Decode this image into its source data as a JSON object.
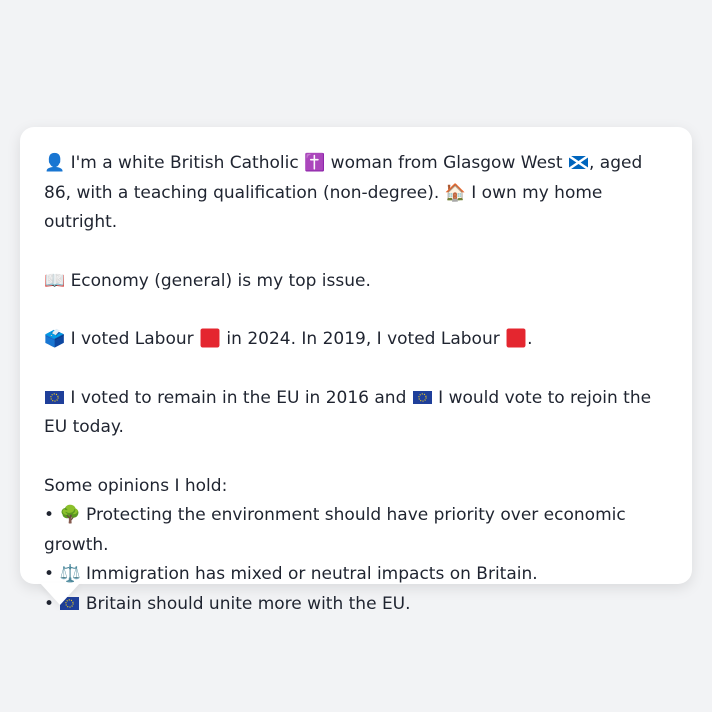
{
  "card": {
    "line1_a": "👤 I'm a white British Catholic ✝️ woman from Glasgow West ",
    "line1_flag": "scotland-flag-icon",
    "line1_b": ", aged 86, with a teaching qualification (non-degree). 🏠 I own my home outright.",
    "issue": "📖 Economy (general) is my top issue.",
    "vote_a": "🗳️ I voted Labour ",
    "vote_b": " in 2024. In 2019, I voted Labour ",
    "vote_c": ".",
    "eu_a": " I voted to remain in the EU in 2016 and ",
    "eu_b": " I would vote to rejoin the EU today.",
    "opinions_heading": "Some opinions I hold:",
    "opinions": [
      {
        "bullet": "•",
        "emoji": "🌳",
        "text": " Protecting the environment should have priority over economic growth."
      },
      {
        "bullet": "•",
        "emoji": "⚖️",
        "text": " Immigration has mixed or neutral impacts on Britain."
      },
      {
        "bullet": "•",
        "emoji": "",
        "text": " Britain should unite more with the EU."
      }
    ]
  },
  "colors": {
    "background": "#f2f3f5",
    "card": "#ffffff",
    "text": "#1f2430",
    "labour_red": "#e4262f",
    "eu_blue": "#1f3f9a",
    "eu_star": "#f6d21a"
  }
}
